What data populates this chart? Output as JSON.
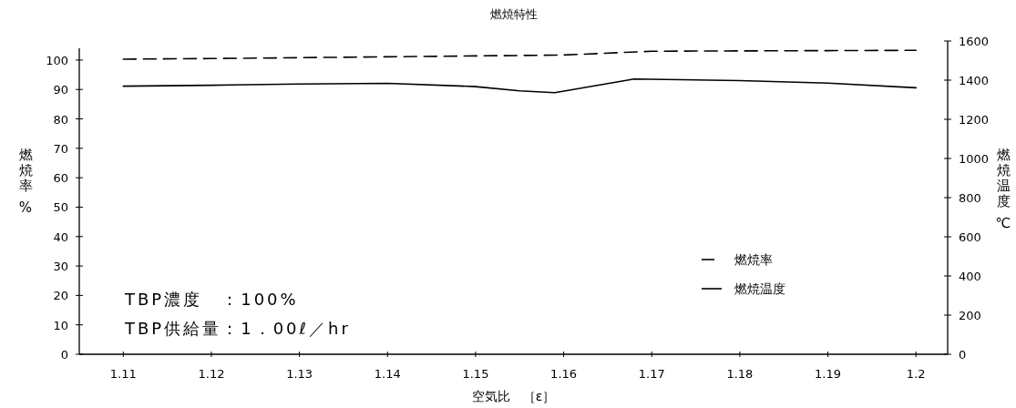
{
  "chart_data": {
    "type": "line",
    "title": "燃焼特性",
    "xlabel": "空気比　［ε］",
    "ylabel": "燃焼率 %",
    "y2label": "燃焼温度 ℃",
    "x": [
      1.11,
      1.12,
      1.13,
      1.14,
      1.15,
      1.16,
      1.17,
      1.18,
      1.19,
      1.2
    ],
    "series": [
      {
        "name": "燃焼率",
        "color": "#000000",
        "line_style": "dashed",
        "values": [
          100.3,
          100.5,
          100.8,
          101.1,
          101.4,
          101.7,
          103,
          103.1,
          103.2,
          103.3
        ]
      },
      {
        "name": "燃焼温度",
        "color": "#000000",
        "line_style": "solid",
        "axis": "y2",
        "x": [
          1.11,
          1.12,
          1.13,
          1.14,
          1.15,
          1.155,
          1.159,
          1.168,
          1.18,
          1.19,
          1.2
        ],
        "values": [
          1369,
          1374,
          1380,
          1384,
          1367,
          1345,
          1336,
          1406,
          1398,
          1385,
          1361
        ]
      }
    ],
    "xlim": [
      1.105,
      1.2036
    ],
    "xticks": [
      1.11,
      1.12,
      1.13,
      1.14,
      1.15,
      1.16,
      1.17,
      1.18,
      1.19,
      1.2
    ],
    "ylim": [
      0,
      104
    ],
    "yticks": [
      0,
      10,
      20,
      30,
      40,
      50,
      60,
      70,
      80,
      90,
      100
    ],
    "y2lim": [
      0,
      1600
    ],
    "y2ticks": [
      0,
      200,
      400,
      600,
      800,
      1000,
      1200,
      1400,
      1600
    ],
    "legend": "right",
    "grid": false,
    "marker": "none",
    "annotations": [
      "TBP濃度　：100%",
      "TBP供給量：1．00ℓ／hr"
    ]
  }
}
